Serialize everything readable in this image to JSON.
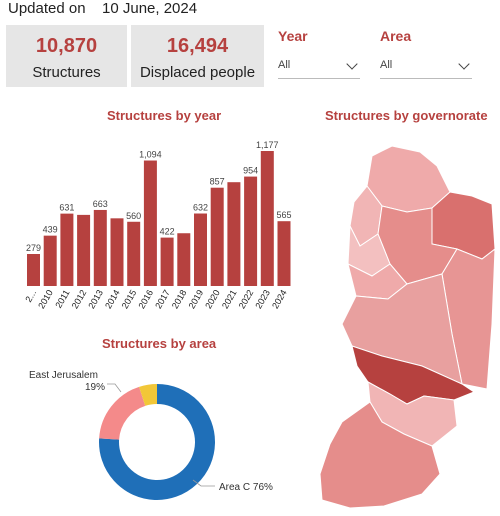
{
  "header": {
    "updated_label": "Updated on",
    "updated_date": "10 June, 2024"
  },
  "cards": [
    {
      "value": "10,870",
      "label": "Structures"
    },
    {
      "value": "16,494",
      "label": "Displaced people"
    }
  ],
  "slicers": [
    {
      "title": "Year",
      "value": "All"
    },
    {
      "title": "Area",
      "value": "All"
    }
  ],
  "titles": {
    "by_year": "Structures by year",
    "by_governorate": "Structures by governorate",
    "by_area": "Structures by area"
  },
  "colors": {
    "accent": "#b6413f",
    "card_bg": "#e6e6e6"
  },
  "chart_data": [
    {
      "type": "bar",
      "title": "Structures by year",
      "categories": [
        "2...",
        "2010",
        "2011",
        "2012",
        "2013",
        "2014",
        "2015",
        "2016",
        "2017",
        "2018",
        "2019",
        "2020",
        "2021",
        "2022",
        "2023",
        "2024"
      ],
      "values": [
        279,
        439,
        631,
        620,
        663,
        590,
        560,
        1094,
        422,
        460,
        632,
        857,
        905,
        954,
        1177,
        565
      ],
      "labels": [
        "279",
        "439",
        "631",
        "",
        "663",
        "",
        "560",
        "1,094",
        "422",
        "",
        "632",
        "857",
        "",
        "954",
        "1,177",
        "565"
      ],
      "color": "#b6413f"
    },
    {
      "type": "pie",
      "title": "Structures by area",
      "slices": [
        {
          "name": "Area C",
          "value": 76,
          "label": "Area C 76%",
          "color": "#1f6fb8"
        },
        {
          "name": "East Jerusalem",
          "value": 19,
          "label": "East Jerusalem 19%",
          "color": "#f48a8a"
        },
        {
          "name": "Other",
          "value": 5,
          "label": "",
          "color": "#f2c738"
        }
      ]
    }
  ]
}
